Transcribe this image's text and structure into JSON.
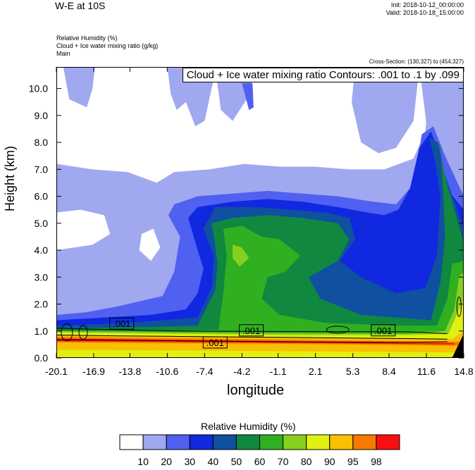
{
  "header": {
    "title": "W-E at 10S",
    "init": "Init: 2018-10-12_00:00:00",
    "valid": "Valid: 2018-10-18_15:00:00",
    "var1": "Relative Humidity   (%)",
    "var2": "Cloud + Ice water mixing ratio   (g/kg)",
    "var3": "Main",
    "cross_section": "Cross-Section: (130,327) to (454,327)"
  },
  "contour_label": "Cloud + Ice water mixing ratio Contours: .001 to .1 by .099",
  "colors": {
    "levels": [
      "#ffffff",
      "#a0a8f0",
      "#5060f0",
      "#1028e0",
      "#1050a0",
      "#108840",
      "#30b020",
      "#88d020",
      "#e0f010",
      "#f8c000",
      "#f87800",
      "#f81010"
    ]
  },
  "chart_data": {
    "type": "heatmap",
    "title": "W-E at 10S",
    "xlabel": "longitude",
    "ylabel": "Height (km)",
    "xlim": [
      -20.1,
      14.8
    ],
    "ylim": [
      0.0,
      10.8
    ],
    "x_ticks": [
      "-20.1",
      "-16.9",
      "-13.8",
      "-10.6",
      "-7.4",
      "-4.2",
      "-1.1",
      "2.1",
      "5.3",
      "8.4",
      "11.6",
      "14.8"
    ],
    "y_ticks": [
      "0.0",
      "1.0",
      "2.0",
      "3.0",
      "4.0",
      "5.0",
      "6.0",
      "7.0",
      "8.0",
      "9.0",
      "10.0"
    ],
    "filled_variable": "Relative Humidity",
    "filled_units": "%",
    "colorbar_levels": [
      "10",
      "20",
      "30",
      "40",
      "50",
      "60",
      "70",
      "80",
      "90",
      "95",
      "98"
    ],
    "contour_variable": "Cloud + Ice water mixing ratio",
    "contour_units": "g/kg",
    "contour_range": [
      0.001,
      0.1
    ],
    "contour_interval": 0.099,
    "contour_labels": [
      ".001",
      ".001",
      ".001",
      ".001"
    ]
  },
  "colorbar": {
    "title": "Relative Humidity  (%)",
    "labels": [
      "10",
      "20",
      "30",
      "40",
      "50",
      "60",
      "70",
      "80",
      "90",
      "95",
      "98"
    ]
  }
}
